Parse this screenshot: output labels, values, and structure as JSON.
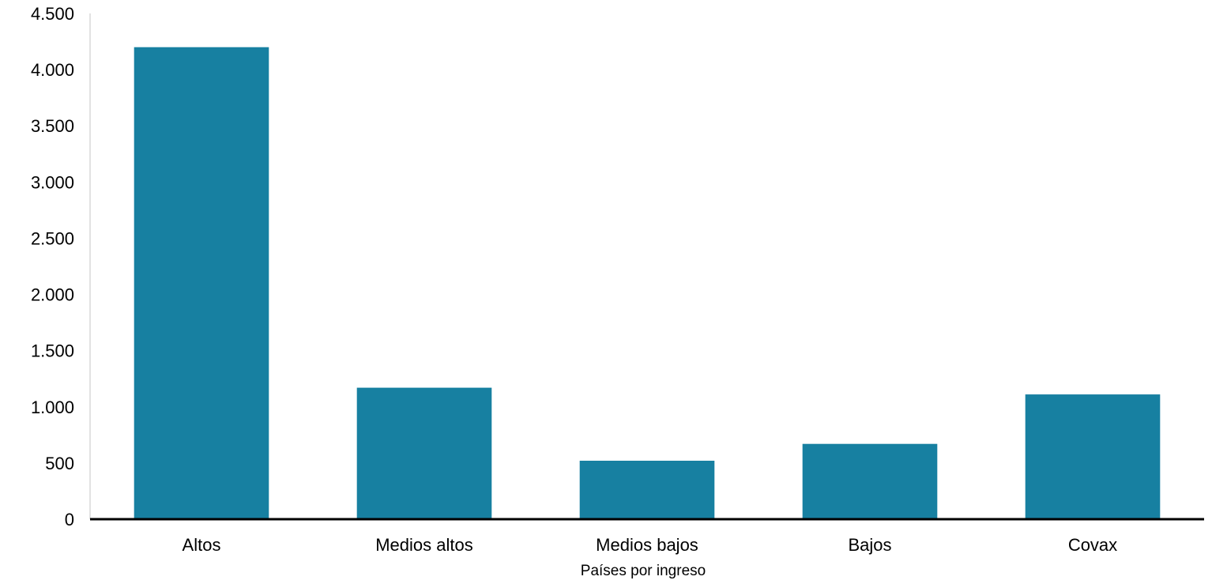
{
  "chart_data": {
    "type": "bar",
    "title": "",
    "xlabel": "Países por ingreso",
    "ylabel": "",
    "categories": [
      "Altos",
      "Medios altos",
      "Medios bajos",
      "Bajos",
      "Covax"
    ],
    "values": [
      4200,
      1170,
      520,
      670,
      1110
    ],
    "ylim": [
      0,
      4500
    ],
    "yticks": [
      0,
      500,
      1000,
      1500,
      2000,
      2500,
      3000,
      3500,
      4000,
      4500
    ],
    "ytick_labels": [
      "0",
      "500",
      "1.000",
      "1.500",
      "2.000",
      "2.500",
      "3.000",
      "3.500",
      "4.000",
      "4.500"
    ],
    "grid": false,
    "legend": "none",
    "bar_color": "#1780A1",
    "axis_color": "#000000"
  }
}
